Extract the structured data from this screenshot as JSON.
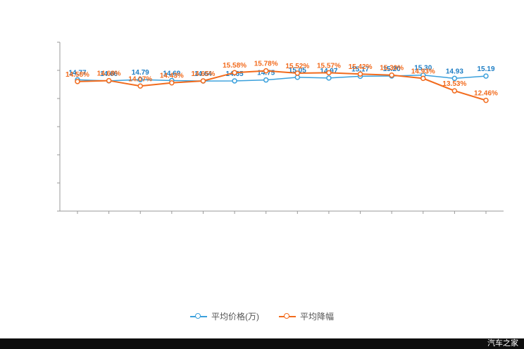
{
  "chart_data": {
    "type": "line",
    "title": "",
    "x_labels": [],
    "x_labels_visible": false,
    "ylim": [
      0,
      19
    ],
    "grid": false,
    "legend_position": "bottom",
    "axis_color": "#999999",
    "series": [
      {
        "name": "平均价格(万)",
        "color": "#3aa0dc",
        "label_color": "#1c7dc4",
        "value_suffix": "",
        "values": [
          14.77,
          14.66,
          14.79,
          14.69,
          14.64,
          14.65,
          14.75,
          15.05,
          14.97,
          15.17,
          15.2,
          15.3,
          14.93,
          15.19
        ]
      },
      {
        "name": "平均降幅",
        "color": "#f26b1d",
        "label_color": "#f26b1d",
        "value_suffix": "%",
        "values": [
          14.58,
          14.68,
          14.07,
          14.43,
          14.65,
          15.58,
          15.78,
          15.52,
          15.57,
          15.42,
          15.3,
          14.93,
          13.53,
          12.46
        ]
      }
    ]
  },
  "legend": {
    "items": [
      {
        "label": "平均价格(万)"
      },
      {
        "label": "平均降幅"
      }
    ]
  },
  "watermark": "汽车之家"
}
